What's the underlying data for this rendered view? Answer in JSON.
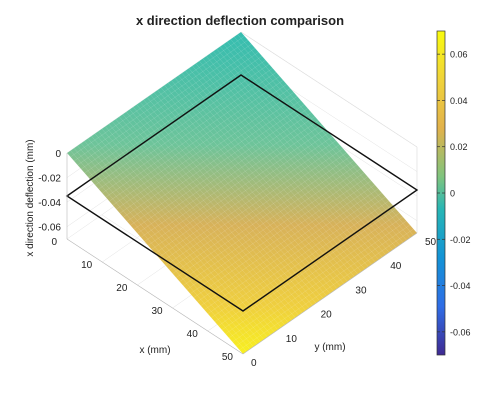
{
  "chart_data": {
    "type": "surface",
    "title": "x direction deflection comparison",
    "xlabel": "x (mm)",
    "ylabel": "y (mm)",
    "zlabel": "x direction deflection (mm)",
    "x_range": [
      0,
      50
    ],
    "y_range": [
      0,
      50
    ],
    "z_range": [
      -0.07,
      0
    ],
    "x_ticks": [
      0,
      10,
      20,
      30,
      40,
      50
    ],
    "y_ticks": [
      0,
      10,
      20,
      30,
      40,
      50
    ],
    "z_ticks": [
      0,
      -0.02,
      -0.04,
      -0.06
    ],
    "surface_corners": [
      {
        "x": 0,
        "y": 0,
        "z": 0
      },
      {
        "x": 0,
        "y": 50,
        "z": 0
      },
      {
        "x": 50,
        "y": 0,
        "z": -0.07
      },
      {
        "x": 50,
        "y": 50,
        "z": -0.07
      }
    ],
    "reference_plane_z": -0.035,
    "grid": true,
    "colormap": "parula",
    "colorbar": {
      "position": "right",
      "range": [
        -0.07,
        0.07
      ],
      "ticks": [
        0.06,
        0.04,
        0.02,
        0,
        -0.02,
        -0.04,
        -0.06
      ]
    }
  }
}
